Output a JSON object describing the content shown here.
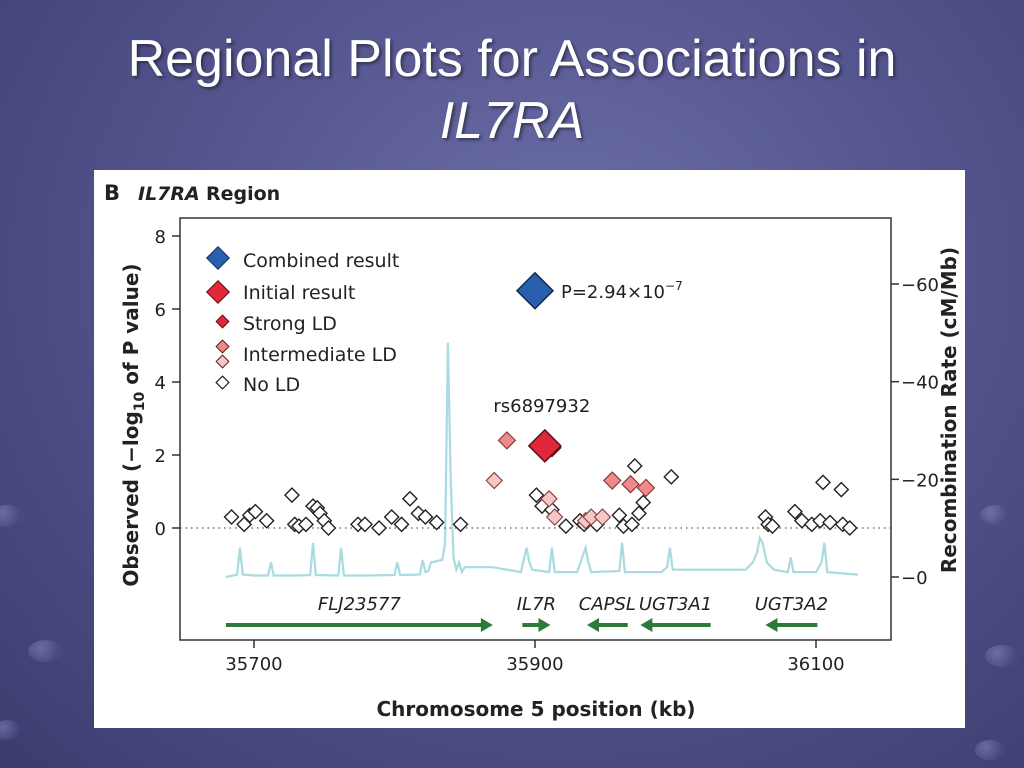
{
  "slide": {
    "title_line1": "Regional Plots for Associations in",
    "title_line2": "IL7RA"
  },
  "figure": {
    "panel_letter": "B",
    "region_gene": "IL7RA",
    "region_word": "Region"
  },
  "colors": {
    "background": "#55568f",
    "combined": "#2a5fae",
    "initial": "#e0283a",
    "strong_ld": "#e0283a",
    "intermediate_ld": "#ee8a8a",
    "weak_ld": "#f6c7c7",
    "no_ld": "#ffffff",
    "recombination": "#a9dbe0",
    "gene_arrow": "#2d7a3a"
  },
  "chart_data": {
    "type": "scatter",
    "xlabel": "Chromosome 5 position (kb)",
    "ylabel": "Observed (−log10 of P value)",
    "ylabel_parts": [
      "Observed (−log",
      "10",
      " of P value)"
    ],
    "y2label": "Recombination Rate (cM/Mb)",
    "xlim": [
      35680,
      36130
    ],
    "ylim": [
      -3.1,
      8.4
    ],
    "y2lim": [
      0,
      75
    ],
    "x_ticks": [
      35700,
      35900,
      36100
    ],
    "y_ticks": [
      0,
      2,
      4,
      6,
      8
    ],
    "y2_ticks": [
      0,
      20,
      40,
      60
    ],
    "dotted_baseline": 0,
    "legend": {
      "position": "top-left",
      "entries": [
        {
          "label": "Combined result",
          "style": "combined"
        },
        {
          "label": "Initial result",
          "style": "initial"
        },
        {
          "label": "Strong LD",
          "style": "strong"
        },
        {
          "label": "Intermediate LD",
          "style": "intermediate"
        },
        {
          "label": "No LD",
          "style": "none"
        }
      ]
    },
    "annotations": {
      "p_value_prefix": "P=2.94×10",
      "p_value_exp": "−7",
      "snp_label": "rs6897932"
    },
    "combined_point": {
      "x": 35900,
      "y": 6.5
    },
    "initial_point": {
      "x": 35907,
      "y": 2.25
    },
    "series": [
      {
        "ld": "strong",
        "points": [
          [
            35912,
            2.2
          ]
        ]
      },
      {
        "ld": "intermediate",
        "points": [
          [
            35880,
            2.4
          ],
          [
            35955,
            1.3
          ],
          [
            35968,
            1.2
          ],
          [
            35979,
            1.1
          ]
        ]
      },
      {
        "ld": "weak",
        "points": [
          [
            35871,
            1.3
          ],
          [
            35910,
            0.8
          ],
          [
            35914,
            0.3
          ],
          [
            35936,
            0.2
          ],
          [
            35940,
            0.3
          ],
          [
            35948,
            0.3
          ]
        ]
      },
      {
        "ld": "none",
        "points": [
          [
            35684,
            0.3
          ],
          [
            35693,
            0.1
          ],
          [
            35697,
            0.35
          ],
          [
            35701,
            0.45
          ],
          [
            35709,
            0.2
          ],
          [
            35727,
            0.9
          ],
          [
            35729,
            0.1
          ],
          [
            35732,
            0.05
          ],
          [
            35737,
            0.1
          ],
          [
            35742,
            0.6
          ],
          [
            35745,
            0.55
          ],
          [
            35747,
            0.4
          ],
          [
            35750,
            0.2
          ],
          [
            35753,
            0.0
          ],
          [
            35774,
            0.1
          ],
          [
            35779,
            0.1
          ],
          [
            35789,
            0.0
          ],
          [
            35798,
            0.3
          ],
          [
            35805,
            0.1
          ],
          [
            35811,
            0.8
          ],
          [
            35817,
            0.4
          ],
          [
            35822,
            0.3
          ],
          [
            35830,
            0.15
          ],
          [
            35847,
            0.1
          ],
          [
            35901,
            0.9
          ],
          [
            35905,
            0.6
          ],
          [
            35912,
            0.5
          ],
          [
            35922,
            0.05
          ],
          [
            35932,
            0.2
          ],
          [
            35935,
            0.1
          ],
          [
            35944,
            0.1
          ],
          [
            35960,
            0.35
          ],
          [
            35963,
            0.05
          ],
          [
            35969,
            0.1
          ],
          [
            35974,
            0.4
          ],
          [
            35977,
            0.7
          ],
          [
            35971,
            1.7
          ],
          [
            35997,
            1.4
          ],
          [
            36064,
            0.3
          ],
          [
            36066,
            0.1
          ],
          [
            36069,
            0.05
          ],
          [
            36085,
            0.45
          ],
          [
            36090,
            0.2
          ],
          [
            36097,
            0.1
          ],
          [
            36103,
            0.2
          ],
          [
            36110,
            0.15
          ],
          [
            36119,
            0.1
          ],
          [
            36124,
            0.0
          ],
          [
            36105,
            1.25
          ],
          [
            36118,
            1.05
          ]
        ]
      }
    ],
    "recombination_series": {
      "name": "Recombination Rate (cM/Mb)",
      "x": [
        35680,
        35688,
        35690,
        35692,
        35700,
        35710,
        35712,
        35714,
        35730,
        35740,
        35742,
        35744,
        35760,
        35762,
        35764,
        35780,
        35800,
        35802,
        35804,
        35818,
        35820,
        35822,
        35824,
        35826,
        35834,
        35836,
        35838,
        35840,
        35842,
        35844,
        35846,
        35848,
        35850,
        35870,
        35880,
        35890,
        35894,
        35896,
        35898,
        35910,
        35912,
        35914,
        35930,
        35936,
        35938,
        35940,
        35960,
        35962,
        35964,
        35990,
        35994,
        35996,
        35998,
        36050,
        36055,
        36058,
        36060,
        36062,
        36065,
        36070,
        36080,
        36082,
        36084,
        36100,
        36104,
        36106,
        36108,
        36130
      ],
      "y": [
        0,
        0.5,
        6,
        0.5,
        0.3,
        0.3,
        3,
        0.3,
        0.3,
        0.4,
        7,
        0.4,
        0.3,
        6,
        0.3,
        0.3,
        0.4,
        3,
        0.4,
        0.5,
        3.5,
        1,
        1.2,
        3,
        3.5,
        7,
        48,
        20,
        4,
        1.5,
        3,
        1,
        2,
        2,
        1.5,
        1,
        6,
        3,
        1.5,
        1,
        6,
        1,
        1,
        6,
        3,
        1,
        1.2,
        7,
        1,
        1,
        2,
        6,
        1.5,
        1.5,
        3,
        5,
        8,
        7,
        3,
        1.5,
        1,
        4,
        1,
        1,
        3,
        7,
        1,
        0.5
      ]
    },
    "genes": [
      {
        "name": "FLJ23577",
        "start": 35680,
        "end": 35870,
        "direction": "+"
      },
      {
        "name": "IL7R",
        "start": 35891,
        "end": 35911,
        "direction": "+"
      },
      {
        "name": "CAPSL",
        "start": 35937,
        "end": 35966,
        "direction": "-"
      },
      {
        "name": "UGT3A1",
        "start": 35975,
        "end": 36025,
        "direction": "-"
      },
      {
        "name": "UGT3A2",
        "start": 36064,
        "end": 36101,
        "direction": "-"
      }
    ]
  }
}
